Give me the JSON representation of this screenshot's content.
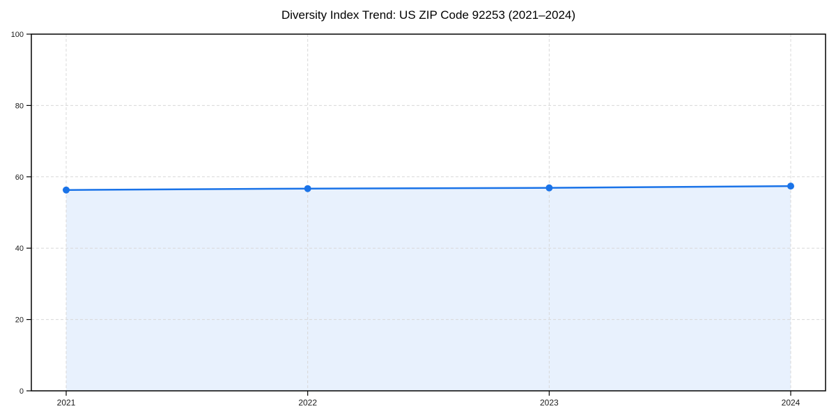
{
  "chart_data": {
    "type": "area",
    "title": "Diversity Index Trend: US ZIP Code 92253 (2021–2024)",
    "x": [
      "2021",
      "2022",
      "2023",
      "2024"
    ],
    "series": [
      {
        "name": "Diversity Index",
        "values": [
          56.3,
          56.7,
          56.9,
          57.4
        ]
      }
    ],
    "xlabel": "",
    "ylabel": "",
    "ylim": [
      0,
      100
    ],
    "yticks": [
      0,
      20,
      40,
      60,
      80,
      100
    ],
    "grid": true,
    "grid_style": "dashed",
    "legend": "none",
    "markers": true,
    "colors": {
      "line": "#1a73e8",
      "marker": "#1a73e8",
      "fill": "rgba(26,115,232,0.10)",
      "grid": "#d8d8d8",
      "axis": "#000000",
      "tick_label": "#1a1a1a",
      "title": "#000000",
      "background": "#ffffff"
    }
  }
}
